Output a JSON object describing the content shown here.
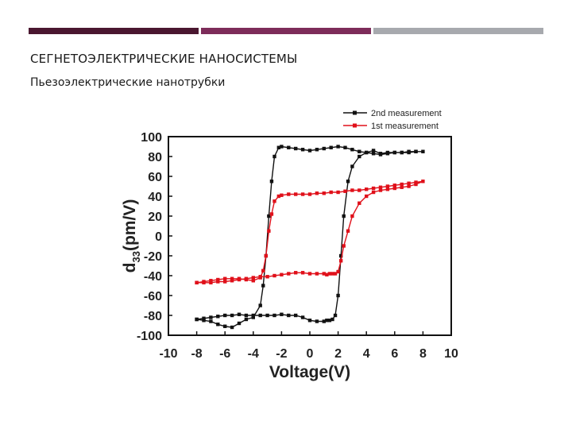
{
  "colors": {
    "bar1": "#4a1730",
    "bar2": "#7d2c5a",
    "bar3": "#a7a9ae",
    "black_series": "#111111",
    "red_series": "#e0101a"
  },
  "header": {
    "title": "СЕГНЕТОЭЛЕКТРИЧЕСКИЕ НАНОСИСТЕМЫ",
    "subtitle": "Пьезоэлектрические нанотрубки"
  },
  "chart_data": {
    "type": "line",
    "title": "",
    "xlabel": "Voltage(V)",
    "ylabel_main": "d",
    "ylabel_sub": "33",
    "ylabel_unit": "(pm/V)",
    "xlim": [
      -10,
      10
    ],
    "ylim": [
      -100,
      100
    ],
    "xticks": [
      -10,
      -8,
      -6,
      -4,
      -2,
      0,
      2,
      4,
      6,
      8,
      10
    ],
    "yticks": [
      100,
      80,
      60,
      40,
      20,
      0,
      -20,
      -40,
      -60,
      -80,
      -100
    ],
    "legend_position": "top-right-outside",
    "series": [
      {
        "name": "2nd measurement",
        "color": "#111111",
        "x": [
          -8,
          -7.5,
          -7,
          -6.5,
          -6,
          -5.5,
          -5,
          -4.5,
          -4,
          -3.5,
          -3.3,
          -3.1,
          -2.9,
          -2.7,
          -2.5,
          -2.2,
          -2,
          -1.5,
          -1,
          -0.5,
          0,
          0.5,
          1,
          1.5,
          2,
          2.5,
          3,
          3.5,
          4,
          4.5,
          5,
          5.5,
          6,
          6.5,
          7,
          7.5,
          8,
          7.5,
          7,
          6.5,
          6,
          5.5,
          5,
          4.5,
          4,
          3.5,
          3,
          2.7,
          2.4,
          2.2,
          2.0,
          1.8,
          1.6,
          1.4,
          1.2,
          1,
          0.5,
          0,
          -0.5,
          -1,
          -1.5,
          -2,
          -2.5,
          -3,
          -3.5,
          -4,
          -4.5,
          -5,
          -5.5,
          -6,
          -6.5,
          -7,
          -7.5,
          -8
        ],
        "y": [
          -84,
          -85,
          -86,
          -89,
          -91,
          -92,
          -88,
          -84,
          -82,
          -70,
          -50,
          -20,
          20,
          55,
          80,
          89,
          90,
          89,
          88,
          87,
          86,
          87,
          88,
          89,
          90,
          89,
          87,
          85,
          84,
          83,
          82,
          83,
          84,
          84,
          84,
          85,
          85,
          85,
          85,
          84,
          84,
          84,
          83,
          86,
          84,
          80,
          70,
          55,
          20,
          -20,
          -60,
          -80,
          -84,
          -85,
          -85,
          -86,
          -86,
          -85,
          -82,
          -80,
          -80,
          -79,
          -80,
          -80,
          -80,
          -80,
          -80,
          -79,
          -80,
          -80,
          -81,
          -82,
          -83,
          -84
        ]
      },
      {
        "name": "1st measurement",
        "color": "#e0101a",
        "x": [
          -8,
          -7.5,
          -7,
          -6.5,
          -6,
          -5.5,
          -5,
          -4.5,
          -4,
          -3.5,
          -3.3,
          -3.1,
          -2.9,
          -2.7,
          -2.5,
          -2.2,
          -2,
          -1.5,
          -1,
          -0.5,
          0,
          0.5,
          1,
          1.5,
          2,
          2.5,
          3,
          3.5,
          4,
          4.5,
          5,
          5.5,
          6,
          6.5,
          7,
          7.5,
          8,
          7.5,
          7,
          6.5,
          6,
          5.5,
          5,
          4.5,
          4,
          3.5,
          3,
          2.7,
          2.4,
          2.2,
          2.0,
          1.8,
          1.6,
          1.4,
          1.2,
          1,
          0.5,
          0,
          -0.5,
          -1,
          -1.5,
          -2,
          -2.5,
          -3,
          -3.5,
          -4,
          -4.5,
          -5,
          -5.5,
          -6,
          -6.5,
          -7,
          -7.5,
          -8
        ],
        "y": [
          -47,
          -46,
          -45,
          -44,
          -43,
          -43,
          -43,
          -44,
          -45,
          -42,
          -35,
          -20,
          5,
          22,
          35,
          40,
          41,
          42,
          42,
          42,
          42,
          43,
          43,
          44,
          44,
          45,
          46,
          46,
          47,
          48,
          49,
          50,
          51,
          52,
          53,
          54,
          55,
          52,
          50,
          49,
          48,
          47,
          46,
          44,
          40,
          33,
          20,
          5,
          -10,
          -25,
          -36,
          -38,
          -38,
          -38,
          -39,
          -38,
          -38,
          -38,
          -37,
          -37,
          -38,
          -39,
          -40,
          -41,
          -41,
          -42,
          -43,
          -44,
          -45,
          -46,
          -46,
          -47,
          -47,
          -47
        ]
      }
    ]
  }
}
